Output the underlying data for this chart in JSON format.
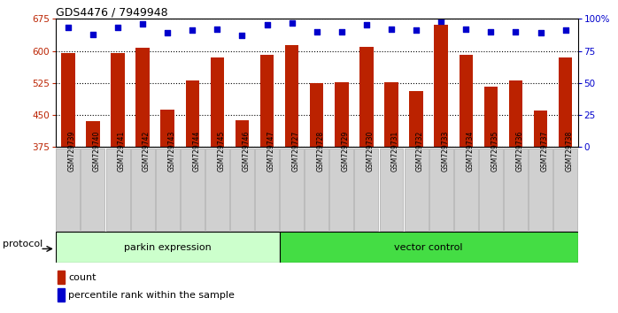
{
  "title": "GDS4476 / 7949948",
  "samples": [
    "GSM729739",
    "GSM729740",
    "GSM729741",
    "GSM729742",
    "GSM729743",
    "GSM729744",
    "GSM729745",
    "GSM729746",
    "GSM729747",
    "GSM729727",
    "GSM729728",
    "GSM729729",
    "GSM729730",
    "GSM729731",
    "GSM729732",
    "GSM729733",
    "GSM729734",
    "GSM729735",
    "GSM729736",
    "GSM729737",
    "GSM729738"
  ],
  "counts": [
    595,
    435,
    595,
    607,
    462,
    530,
    585,
    437,
    590,
    614,
    525,
    527,
    610,
    527,
    505,
    660,
    590,
    516,
    530,
    460,
    585
  ],
  "percentile_ranks": [
    93,
    88,
    93,
    96,
    89,
    91,
    92,
    87,
    95,
    97,
    90,
    90,
    95,
    92,
    91,
    98,
    92,
    90,
    90,
    89,
    91
  ],
  "group1_label": "parkin expression",
  "group2_label": "vector control",
  "group1_count": 9,
  "group2_count": 12,
  "ylim_left": [
    375,
    675
  ],
  "ylim_right": [
    0,
    100
  ],
  "yticks_left": [
    375,
    450,
    525,
    600,
    675
  ],
  "yticks_right": [
    0,
    25,
    50,
    75,
    100
  ],
  "bar_color": "#bb2200",
  "dot_color": "#0000cc",
  "group1_bg": "#ccffcc",
  "group2_bg": "#44dd44",
  "protocol_label": "protocol",
  "legend_count_label": "count",
  "legend_pct_label": "percentile rank within the sample",
  "tick_label_color_left": "#bb2200",
  "tick_label_color_right": "#0000cc",
  "title_fontsize": 9,
  "bar_width": 0.55,
  "dot_size": 16,
  "xtick_bg": "#d0d0d0"
}
